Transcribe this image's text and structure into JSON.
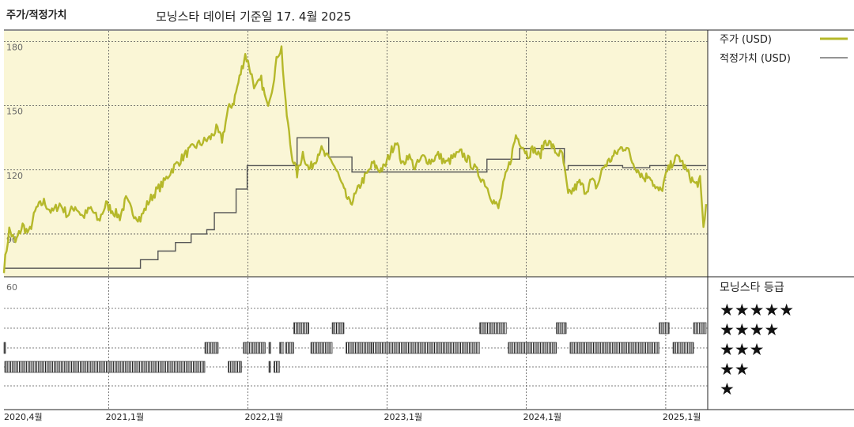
{
  "header": {
    "left_title": "주가/적정가치",
    "main_title": "모닝스타 데이터 기준일 17. 4월 2025"
  },
  "legend": {
    "price_label": "주가 (USD)",
    "fair_label": "적정가치 (USD)",
    "rating_header": "모닝스타 등급",
    "stars": [
      "★★★★★",
      "★★★★",
      "★★★",
      "★★",
      "★"
    ]
  },
  "colors": {
    "price": "#b5b82a",
    "fair": "#555555",
    "panel": "#faf6d6",
    "rating_bar": "#222222"
  },
  "chart_data": {
    "type": "line",
    "x_range": [
      "2020-04-01",
      "2025-04-17"
    ],
    "ylim": [
      70,
      185
    ],
    "y_ticks": [
      180,
      150,
      120,
      90
    ],
    "y_ticks_lower": [
      60
    ],
    "x_ticks": [
      "2020,4월",
      "2021,1월",
      "2022,1월",
      "2023,1월",
      "2024,1월",
      "2025,1월"
    ],
    "grid": true,
    "legend_position": "right",
    "series": [
      {
        "name": "주가 (USD)",
        "points": [
          [
            "2020-04-01",
            74
          ],
          [
            "2020-04-15",
            92
          ],
          [
            "2020-05-01",
            86
          ],
          [
            "2020-05-20",
            94
          ],
          [
            "2020-06-05",
            90
          ],
          [
            "2020-06-25",
            102
          ],
          [
            "2020-07-15",
            105
          ],
          [
            "2020-08-05",
            100
          ],
          [
            "2020-08-25",
            104
          ],
          [
            "2020-09-15",
            99
          ],
          [
            "2020-10-05",
            103
          ],
          [
            "2020-10-25",
            98
          ],
          [
            "2020-11-15",
            102
          ],
          [
            "2020-12-05",
            96
          ],
          [
            "2020-12-25",
            104
          ],
          [
            "2021-01-10",
            101
          ],
          [
            "2021-01-30",
            98
          ],
          [
            "2021-02-15",
            106
          ],
          [
            "2021-03-05",
            100
          ],
          [
            "2021-03-25",
            97
          ],
          [
            "2021-04-15",
            105
          ],
          [
            "2021-05-05",
            110
          ],
          [
            "2021-05-25",
            114
          ],
          [
            "2021-06-15",
            120
          ],
          [
            "2021-07-05",
            124
          ],
          [
            "2021-07-25",
            128
          ],
          [
            "2021-08-15",
            131
          ],
          [
            "2021-09-05",
            133
          ],
          [
            "2021-09-25",
            135
          ],
          [
            "2021-10-10",
            139
          ],
          [
            "2021-10-25",
            134
          ],
          [
            "2021-11-10",
            148
          ],
          [
            "2021-11-25",
            152
          ],
          [
            "2021-12-10",
            163
          ],
          [
            "2021-12-25",
            174
          ],
          [
            "2022-01-05",
            168
          ],
          [
            "2022-01-20",
            158
          ],
          [
            "2022-02-05",
            162
          ],
          [
            "2022-02-20",
            150
          ],
          [
            "2022-03-05",
            158
          ],
          [
            "2022-03-20",
            174
          ],
          [
            "2022-03-30",
            177
          ],
          [
            "2022-04-10",
            150
          ],
          [
            "2022-04-25",
            128
          ],
          [
            "2022-05-10",
            118
          ],
          [
            "2022-05-25",
            128
          ],
          [
            "2022-06-10",
            120
          ],
          [
            "2022-06-25",
            124
          ],
          [
            "2022-07-10",
            130
          ],
          [
            "2022-07-25",
            126
          ],
          [
            "2022-08-10",
            124
          ],
          [
            "2022-08-25",
            118
          ],
          [
            "2022-09-10",
            110
          ],
          [
            "2022-09-25",
            104
          ],
          [
            "2022-10-10",
            108
          ],
          [
            "2022-10-25",
            114
          ],
          [
            "2022-11-10",
            118
          ],
          [
            "2022-11-25",
            123
          ],
          [
            "2022-12-10",
            120
          ],
          [
            "2022-12-25",
            121
          ],
          [
            "2023-01-10",
            128
          ],
          [
            "2023-01-25",
            134
          ],
          [
            "2023-02-10",
            122
          ],
          [
            "2023-02-25",
            127
          ],
          [
            "2023-03-15",
            121
          ],
          [
            "2023-04-05",
            126
          ],
          [
            "2023-04-25",
            124
          ],
          [
            "2023-05-15",
            127
          ],
          [
            "2023-06-05",
            123
          ],
          [
            "2023-06-25",
            126
          ],
          [
            "2023-07-15",
            128
          ],
          [
            "2023-08-05",
            124
          ],
          [
            "2023-08-25",
            119
          ],
          [
            "2023-09-15",
            114
          ],
          [
            "2023-10-05",
            106
          ],
          [
            "2023-10-20",
            102
          ],
          [
            "2023-11-05",
            115
          ],
          [
            "2023-11-20",
            124
          ],
          [
            "2023-12-05",
            136
          ],
          [
            "2023-12-20",
            132
          ],
          [
            "2024-01-05",
            127
          ],
          [
            "2024-01-20",
            130
          ],
          [
            "2024-02-05",
            126
          ],
          [
            "2024-02-20",
            134
          ],
          [
            "2024-03-05",
            132
          ],
          [
            "2024-03-20",
            128
          ],
          [
            "2024-04-05",
            127
          ],
          [
            "2024-04-20",
            108
          ],
          [
            "2024-05-05",
            111
          ],
          [
            "2024-05-20",
            114
          ],
          [
            "2024-06-05",
            110
          ],
          [
            "2024-06-20",
            115
          ],
          [
            "2024-07-05",
            112
          ],
          [
            "2024-07-20",
            121
          ],
          [
            "2024-08-05",
            124
          ],
          [
            "2024-08-20",
            127
          ],
          [
            "2024-09-05",
            130
          ],
          [
            "2024-09-20",
            131
          ],
          [
            "2024-10-05",
            124
          ],
          [
            "2024-10-20",
            120
          ],
          [
            "2024-11-05",
            116
          ],
          [
            "2024-11-20",
            118
          ],
          [
            "2024-12-05",
            111
          ],
          [
            "2024-12-20",
            110
          ],
          [
            "2025-01-05",
            119
          ],
          [
            "2025-01-20",
            124
          ],
          [
            "2025-02-05",
            126
          ],
          [
            "2025-02-20",
            121
          ],
          [
            "2025-03-05",
            117
          ],
          [
            "2025-03-20",
            113
          ],
          [
            "2025-04-01",
            115
          ],
          [
            "2025-04-10",
            93
          ],
          [
            "2025-04-17",
            104
          ]
        ]
      },
      {
        "name": "적정가치 (USD)",
        "steps": [
          [
            "2020-04-01",
            74
          ],
          [
            "2021-01-20",
            74
          ],
          [
            "2021-03-25",
            78
          ],
          [
            "2021-05-10",
            82
          ],
          [
            "2021-06-25",
            86
          ],
          [
            "2021-08-05",
            90
          ],
          [
            "2021-09-15",
            92
          ],
          [
            "2021-10-05",
            100
          ],
          [
            "2021-12-01",
            111
          ],
          [
            "2021-12-30",
            122
          ],
          [
            "2022-05-10",
            135
          ],
          [
            "2022-05-20",
            135
          ],
          [
            "2022-08-01",
            126
          ],
          [
            "2022-10-01",
            119
          ],
          [
            "2023-09-20",
            125
          ],
          [
            "2023-12-15",
            130
          ],
          [
            "2024-04-10",
            120
          ],
          [
            "2024-04-20",
            122
          ],
          [
            "2024-09-10",
            121
          ],
          [
            "2024-11-20",
            122
          ],
          [
            "2025-04-17",
            122
          ]
        ]
      }
    ],
    "rating": {
      "levels": [
        5,
        4,
        3,
        2,
        1
      ],
      "periods": [
        [
          "2020-04-01",
          "2020-04-03",
          3
        ],
        [
          "2020-04-03",
          "2021-09-10",
          2
        ],
        [
          "2021-09-10",
          "2021-10-15",
          3
        ],
        [
          "2021-11-10",
          "2021-12-15",
          2
        ],
        [
          "2021-12-20",
          "2022-02-15",
          3
        ],
        [
          "2022-02-25",
          "2022-03-01",
          2
        ],
        [
          "2022-03-10",
          "2022-03-25",
          2
        ],
        [
          "2022-02-25",
          "2022-03-02",
          3
        ],
        [
          "2022-03-25",
          "2022-04-05",
          3
        ],
        [
          "2022-04-10",
          "2022-05-01",
          3
        ],
        [
          "2022-05-01",
          "2022-06-10",
          4
        ],
        [
          "2022-06-15",
          "2022-08-10",
          3
        ],
        [
          "2022-08-10",
          "2022-09-10",
          4
        ],
        [
          "2022-09-15",
          "2022-11-20",
          3
        ],
        [
          "2022-11-20",
          "2023-09-01",
          3
        ],
        [
          "2023-09-01",
          "2023-11-10",
          4
        ],
        [
          "2023-11-15",
          "2024-03-20",
          3
        ],
        [
          "2024-03-20",
          "2024-04-15",
          4
        ],
        [
          "2024-04-25",
          "2024-12-15",
          3
        ],
        [
          "2024-12-15",
          "2025-01-10",
          4
        ],
        [
          "2025-01-20",
          "2025-03-15",
          3
        ],
        [
          "2025-03-15",
          "2025-04-17",
          4
        ]
      ]
    }
  }
}
